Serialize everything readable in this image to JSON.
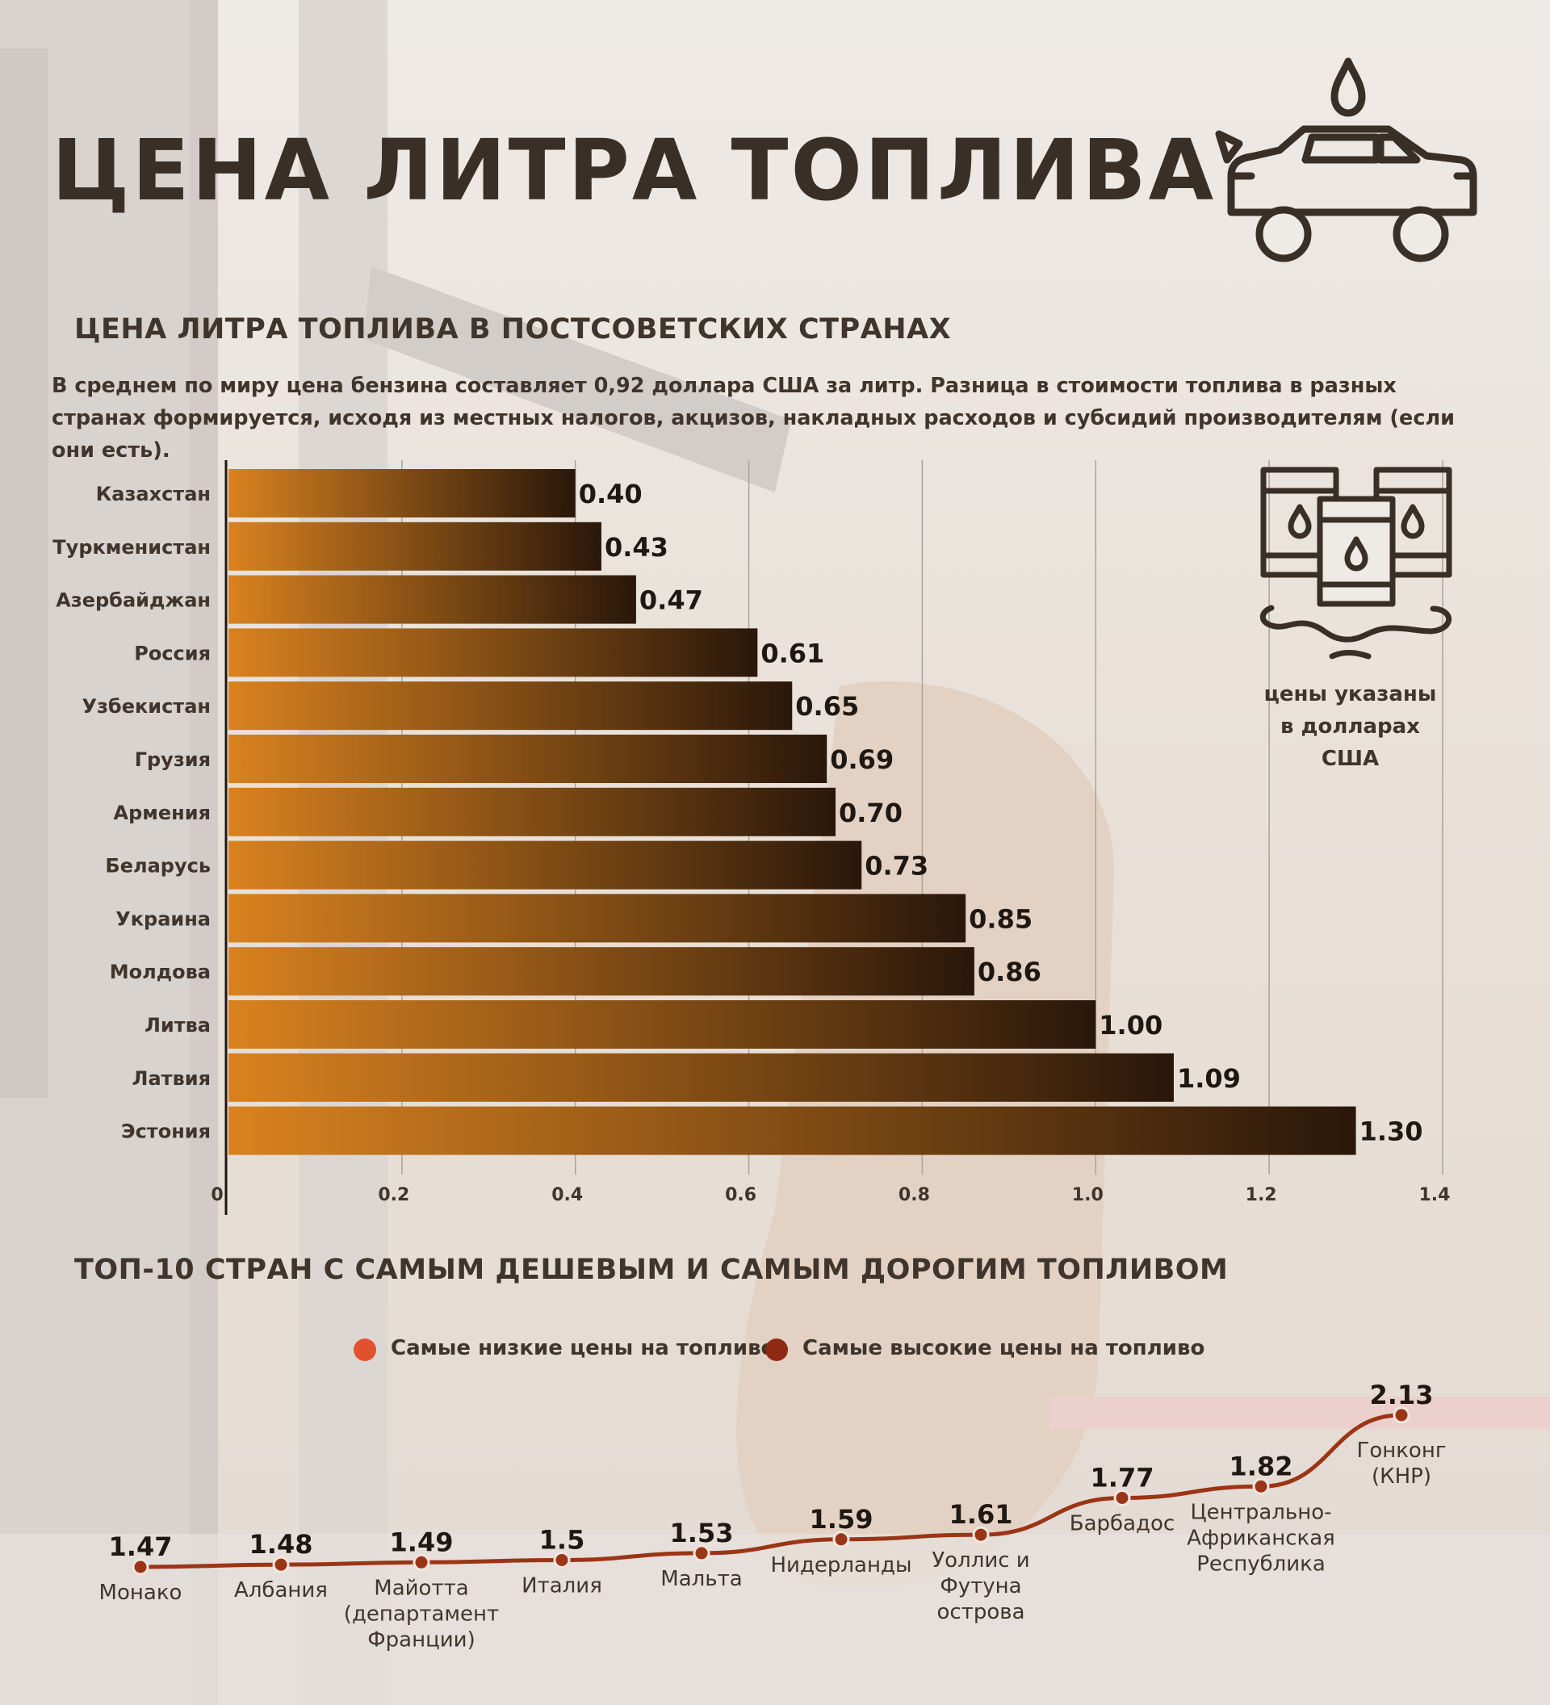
{
  "main_title": "ЦЕНА ЛИТРА ТОПЛИВА",
  "section1": {
    "subtitle": "ЦЕНА ЛИТРА ТОПЛИВА В ПОСТСОВЕТСКИХ СТРАНАХ",
    "description": "В среднем по миру цена бензина составляет 0,92 доллара США за литр. Разница в стоимости топлива в разных странах формируется, исходя из местных налогов, акцизов, накладных расходов и субсидий производителям (если они есть).",
    "note_lines": [
      "цены указаны",
      "в долларах",
      "США"
    ]
  },
  "section2": {
    "subtitle": "ТОП-10 СТРАН С САМЫМ ДЕШЕВЫМ И САМЫМ ДОРОГИМ ТОПЛИВОМ",
    "legend": [
      {
        "label": "Самые низкие цены на топливо",
        "color": "#e0522e"
      },
      {
        "label": "Самые высокие цены на топливо",
        "color": "#8e2a14"
      }
    ]
  },
  "chart_data": [
    {
      "type": "bar",
      "orientation": "horizontal",
      "title": "ЦЕНА ЛИТРА ТОПЛИВА В ПОСТСОВЕТСКИХ СТРАНАХ",
      "categories": [
        "Казахстан",
        "Туркменистан",
        "Азербайджан",
        "Россия",
        "Узбекистан",
        "Грузия",
        "Армения",
        "Беларусь",
        "Украина",
        "Молдова",
        "Литва",
        "Латвия",
        "Эстония"
      ],
      "values": [
        0.4,
        0.43,
        0.47,
        0.61,
        0.65,
        0.69,
        0.7,
        0.73,
        0.85,
        0.86,
        1.0,
        1.09,
        1.3
      ],
      "value_labels": [
        "0.40",
        "0.43",
        "0.47",
        "0.61",
        "0.65",
        "0.69",
        "0.70",
        "0.73",
        "0.85",
        "0.86",
        "1.00",
        "1.09",
        "1.30"
      ],
      "xlim": [
        0,
        1.4
      ],
      "xticks": [
        "0",
        "0.2",
        "0.4",
        "0.6",
        "0.8",
        "1.0",
        "1.2",
        "1.4"
      ],
      "grid": true,
      "bar_color_start": "#d9821f",
      "bar_color_end": "#2a170a"
    },
    {
      "type": "line",
      "title": "ТОП-10 СТРАН С САМЫМ ДЕШЕВЫМ И САМЫМ ДОРОГИМ ТОПЛИВОМ",
      "series_name": "Самые высокие цены на топливо",
      "line_color": "#9a3516",
      "points": [
        {
          "label": [
            "Монако"
          ],
          "value": 1.47,
          "value_label": "1.47"
        },
        {
          "label": [
            "Албания"
          ],
          "value": 1.48,
          "value_label": "1.48"
        },
        {
          "label": [
            "Майотта",
            "(департамент",
            "Франции)"
          ],
          "value": 1.49,
          "value_label": "1.49"
        },
        {
          "label": [
            "Италия"
          ],
          "value": 1.5,
          "value_label": "1.5"
        },
        {
          "label": [
            "Мальта"
          ],
          "value": 1.53,
          "value_label": "1.53"
        },
        {
          "label": [
            "Нидерланды"
          ],
          "value": 1.59,
          "value_label": "1.59"
        },
        {
          "label": [
            "Уоллис и",
            "Футуна",
            "острова"
          ],
          "value": 1.61,
          "value_label": "1.61"
        },
        {
          "label": [
            "Барбадос"
          ],
          "value": 1.77,
          "value_label": "1.77"
        },
        {
          "label": [
            "Центрально-",
            "Африканская",
            "Республика"
          ],
          "value": 1.82,
          "value_label": "1.82"
        },
        {
          "label": [
            "Гонконг",
            "(КНР)"
          ],
          "value": 2.13,
          "value_label": "2.13"
        }
      ]
    }
  ]
}
